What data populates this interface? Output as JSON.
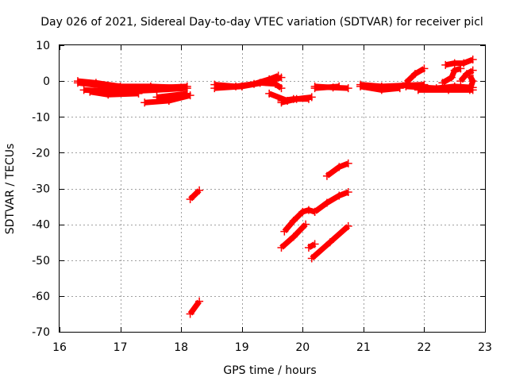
{
  "chart_data": {
    "type": "scatter",
    "title": "Day 026 of 2021, Sidereal Day-to-day VTEC variation (SDTVAR) for receiver picl",
    "xlabel": "GPS time / hours",
    "ylabel": "SDTVAR / TECUs",
    "xlim": [
      16,
      23
    ],
    "ylim": [
      -70,
      10
    ],
    "xticks": [
      "16",
      "17",
      "18",
      "19",
      "20",
      "21",
      "22",
      "23"
    ],
    "yticks": [
      "10",
      "0",
      "-10",
      "-20",
      "-30",
      "-40",
      "-50",
      "-60",
      "-70"
    ],
    "grid": true,
    "marker": "plus",
    "color": "#ff0000",
    "series": [
      {
        "points": [
          [
            16.3,
            0.0
          ],
          [
            16.6,
            -0.5
          ],
          [
            17.0,
            -1.5
          ],
          [
            17.5,
            -1.5
          ],
          [
            18.0,
            -1.8
          ]
        ]
      },
      {
        "points": [
          [
            16.3,
            -0.5
          ],
          [
            16.8,
            -1.5
          ],
          [
            17.4,
            -2.0
          ],
          [
            18.1,
            -1.5
          ]
        ]
      },
      {
        "points": [
          [
            16.4,
            -2.5
          ],
          [
            17.0,
            -3.0
          ],
          [
            17.6,
            -2.5
          ],
          [
            18.1,
            -2.0
          ]
        ]
      },
      {
        "points": [
          [
            16.5,
            -3.0
          ],
          [
            16.8,
            -3.8
          ],
          [
            17.3,
            -3.5
          ]
        ]
      },
      {
        "points": [
          [
            17.4,
            -6.0
          ],
          [
            17.8,
            -5.5
          ],
          [
            18.15,
            -4.0
          ]
        ]
      },
      {
        "points": [
          [
            17.6,
            -4.5
          ],
          [
            18.1,
            -3.5
          ]
        ]
      },
      {
        "points": [
          [
            18.55,
            -1.0
          ],
          [
            18.9,
            -1.5
          ],
          [
            19.2,
            -0.8
          ],
          [
            19.45,
            0.5
          ],
          [
            19.6,
            1.5
          ]
        ]
      },
      {
        "points": [
          [
            18.55,
            -2.0
          ],
          [
            19.0,
            -1.5
          ],
          [
            19.4,
            -0.3
          ],
          [
            19.65,
            1.0
          ]
        ]
      },
      {
        "points": [
          [
            19.3,
            -0.5
          ],
          [
            19.55,
            -0.8
          ],
          [
            19.65,
            -2.0
          ]
        ]
      },
      {
        "points": [
          [
            19.45,
            -3.5
          ],
          [
            19.75,
            -5.5
          ]
        ]
      },
      {
        "points": [
          [
            19.65,
            -6.0
          ],
          [
            19.9,
            -5.0
          ],
          [
            20.15,
            -4.5
          ]
        ]
      },
      {
        "points": [
          [
            19.65,
            -5.5
          ],
          [
            19.85,
            -5.0
          ],
          [
            20.1,
            -5.0
          ]
        ]
      },
      {
        "points": [
          [
            20.2,
            -1.5
          ],
          [
            20.5,
            -1.8
          ],
          [
            20.75,
            -2.0
          ]
        ]
      },
      {
        "points": [
          [
            20.2,
            -2.0
          ],
          [
            20.6,
            -1.5
          ]
        ]
      },
      {
        "points": [
          [
            20.95,
            -1.0
          ],
          [
            21.3,
            -1.5
          ],
          [
            21.7,
            -1.2
          ],
          [
            22.0,
            -1.0
          ]
        ]
      },
      {
        "points": [
          [
            20.95,
            -1.5
          ],
          [
            21.3,
            -2.5
          ],
          [
            21.6,
            -2.0
          ]
        ]
      },
      {
        "points": [
          [
            21.7,
            -1.5
          ],
          [
            22.2,
            -2.0
          ],
          [
            22.5,
            -1.5
          ],
          [
            22.8,
            -1.8
          ]
        ]
      },
      {
        "points": [
          [
            21.9,
            -2.5
          ],
          [
            22.4,
            -2.5
          ],
          [
            22.8,
            -2.5
          ]
        ]
      },
      {
        "points": [
          [
            21.7,
            -0.5
          ],
          [
            21.85,
            2.0
          ],
          [
            22.0,
            3.5
          ]
        ]
      },
      {
        "points": [
          [
            22.3,
            -0.5
          ],
          [
            22.45,
            1.0
          ],
          [
            22.5,
            3.0
          ],
          [
            22.6,
            3.5
          ]
        ]
      },
      {
        "points": [
          [
            22.35,
            4.5
          ],
          [
            22.5,
            5.0
          ],
          [
            22.65,
            5.0
          ],
          [
            22.8,
            6.0
          ]
        ]
      },
      {
        "points": [
          [
            22.6,
            0.0
          ],
          [
            22.7,
            2.0
          ],
          [
            22.8,
            3.0
          ]
        ]
      },
      {
        "points": [
          [
            22.75,
            -2.5
          ],
          [
            22.8,
            0.0
          ],
          [
            22.75,
            1.5
          ]
        ]
      },
      {
        "points": [
          [
            18.15,
            -33.0
          ],
          [
            18.3,
            -30.5
          ]
        ]
      },
      {
        "points": [
          [
            18.15,
            -65.0
          ],
          [
            18.3,
            -61.5
          ]
        ]
      },
      {
        "points": [
          [
            19.7,
            -42.0
          ],
          [
            19.85,
            -39.0
          ],
          [
            20.0,
            -36.5
          ],
          [
            20.1,
            -36.0
          ],
          [
            20.2,
            -36.5
          ]
        ]
      },
      {
        "points": [
          [
            20.2,
            -36.5
          ],
          [
            20.4,
            -34.0
          ],
          [
            20.6,
            -32.0
          ],
          [
            20.75,
            -31.0
          ]
        ]
      },
      {
        "points": [
          [
            19.65,
            -46.5
          ],
          [
            19.85,
            -43.5
          ],
          [
            20.05,
            -40.0
          ]
        ]
      },
      {
        "points": [
          [
            20.4,
            -26.5
          ],
          [
            20.6,
            -24.0
          ],
          [
            20.75,
            -23.0
          ]
        ]
      },
      {
        "points": [
          [
            20.15,
            -49.5
          ],
          [
            20.45,
            -45.0
          ],
          [
            20.75,
            -40.5
          ]
        ]
      },
      {
        "points": [
          [
            20.1,
            -46.5
          ],
          [
            20.2,
            -45.5
          ]
        ]
      }
    ]
  }
}
